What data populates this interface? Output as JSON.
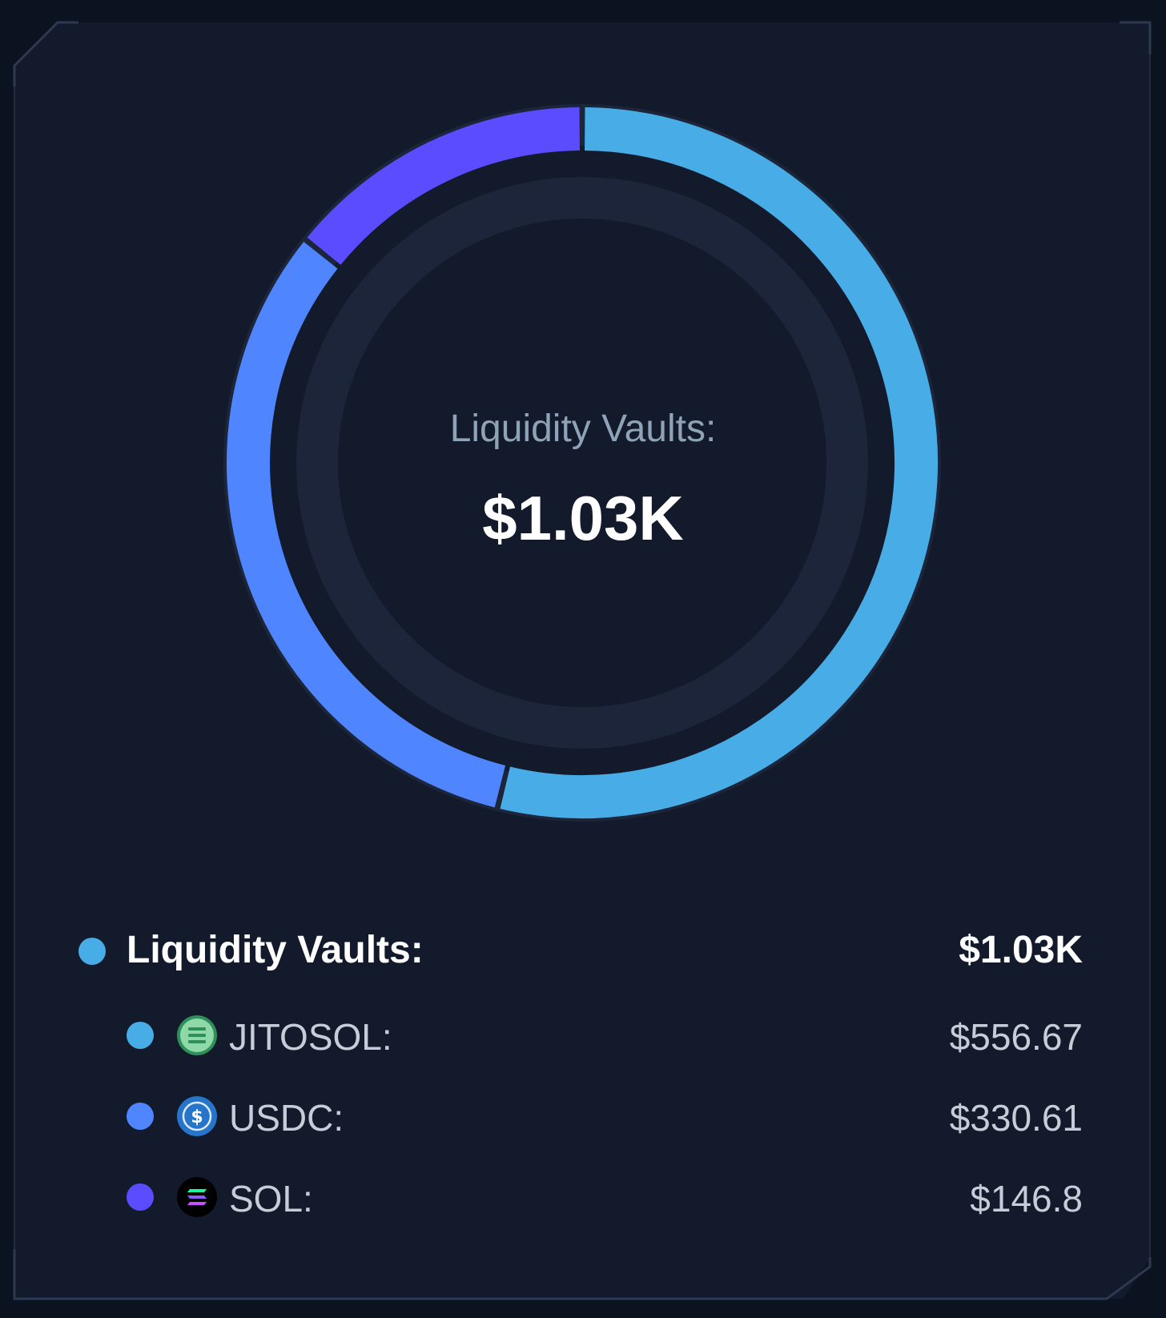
{
  "summary": {
    "center_label": "Liquidity Vaults:",
    "center_value": "$1.03K"
  },
  "chart_data": {
    "type": "pie",
    "series": [
      {
        "name": "JITOSOL",
        "value": 556.67,
        "color": "#48ade6"
      },
      {
        "name": "USDC",
        "value": 330.61,
        "color": "#4f86ff"
      },
      {
        "name": "SOL",
        "value": 146.8,
        "color": "#5b4dff"
      }
    ]
  },
  "legend": {
    "title": {
      "label": "Liquidity Vaults:",
      "value": "$1.03K",
      "color": "#48ade6"
    },
    "items": [
      {
        "label": "JITOSOL:",
        "value": "$556.67",
        "color": "#48ade6",
        "icon": "jitosol-token-icon"
      },
      {
        "label": "USDC:",
        "value": "$330.61",
        "color": "#4f86ff",
        "icon": "usdc-token-icon"
      },
      {
        "label": "SOL:",
        "value": "$146.8",
        "color": "#5b4dff",
        "icon": "sol-token-icon"
      }
    ]
  },
  "colors": {
    "background": "#0b1220",
    "card": "#121a2b",
    "ring_track": "#1c2539",
    "border": "#2a3447"
  }
}
